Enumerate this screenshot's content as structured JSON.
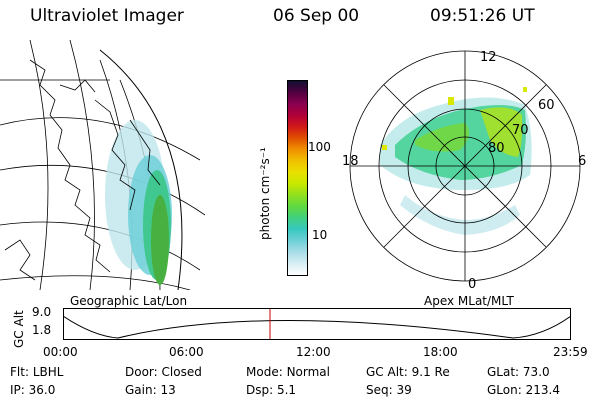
{
  "header": {
    "instrument": "Ultraviolet Imager",
    "date": "06 Sep 00",
    "time": "09:51:26 UT"
  },
  "colorbar": {
    "label": "photon cm⁻²s⁻¹",
    "ticks": [
      "100",
      "10"
    ],
    "colors": [
      "#ffffff",
      "#d8eef4",
      "#a8dde6",
      "#6fd0d8",
      "#38c8c0",
      "#40d080",
      "#60d840",
      "#90e020",
      "#c8e800",
      "#e8e000",
      "#f0c000",
      "#f09000",
      "#e05000",
      "#d01818",
      "#b00038",
      "#8a0050",
      "#500040",
      "#101030"
    ]
  },
  "panels": {
    "left_label": "Geographic Lat/Lon",
    "right_label": "Apex  MLat/MLT"
  },
  "polar": {
    "mlt_labels": {
      "top": "12",
      "left": "18",
      "right": "6",
      "bottom": "0"
    },
    "lat_labels": [
      "60",
      "70",
      "80"
    ]
  },
  "timeline": {
    "axis_label": "GC Alt",
    "y_ticks": [
      "9.0",
      "1.8"
    ],
    "x_ticks": [
      "00:00",
      "06:00",
      "12:00",
      "18:00",
      "23:59"
    ],
    "marker_color": "#cc0000"
  },
  "info": {
    "row1": [
      {
        "label": "Flt:",
        "value": "LBHL"
      },
      {
        "label": "Door:",
        "value": "Closed"
      },
      {
        "label": "Mode:",
        "value": "Normal"
      },
      {
        "label": "GC Alt:",
        "value": "9.1 Re"
      },
      {
        "label": "GLat:",
        "value": "73.0"
      }
    ],
    "row2": [
      {
        "label": "IP:",
        "value": "36.0"
      },
      {
        "label": "Gain:",
        "value": "13"
      },
      {
        "label": "Dsp:",
        "value": "5.1"
      },
      {
        "label": "Seq:",
        "value": "39"
      },
      {
        "label": "GLon:",
        "value": "213.4"
      }
    ]
  }
}
